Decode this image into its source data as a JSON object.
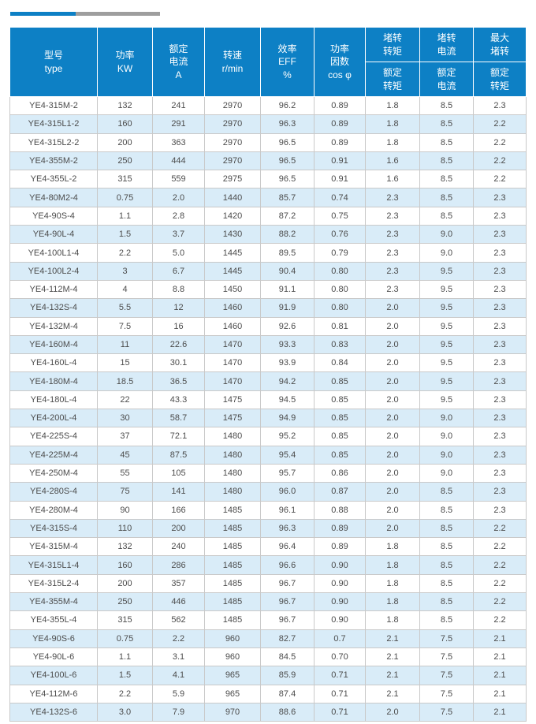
{
  "colors": {
    "header_bg": "#0d80c5",
    "row_alt_bg": "#d9ecf8",
    "accent_blue": "#0d80c5",
    "accent_gray": "#9e9e9e",
    "border": "#c9c9c9",
    "text": "#4c4c4c"
  },
  "table": {
    "header": {
      "model": [
        "型号",
        "type"
      ],
      "power": [
        "功率",
        "KW"
      ],
      "rated_current": [
        "额定",
        "电流",
        "A"
      ],
      "speed": [
        "转速",
        "r/min"
      ],
      "efficiency": [
        "效率",
        "EFF",
        "%"
      ],
      "power_factor": [
        "功率",
        "因数",
        "cos φ"
      ],
      "locked_torque_top": [
        "堵转",
        "转矩"
      ],
      "locked_torque_bottom": [
        "额定",
        "转矩"
      ],
      "locked_current_top": [
        "堵转",
        "电流"
      ],
      "locked_current_bottom": [
        "额定",
        "电流"
      ],
      "max_torque_top": [
        "最大",
        "堵转"
      ],
      "max_torque_bottom": [
        "额定",
        "转矩"
      ]
    },
    "rows": [
      [
        "YE4-315M-2",
        "132",
        "241",
        "2970",
        "96.2",
        "0.89",
        "1.8",
        "8.5",
        "2.3"
      ],
      [
        "YE4-315L1-2",
        "160",
        "291",
        "2970",
        "96.3",
        "0.89",
        "1.8",
        "8.5",
        "2.2"
      ],
      [
        "YE4-315L2-2",
        "200",
        "363",
        "2970",
        "96.5",
        "0.89",
        "1.8",
        "8.5",
        "2.2"
      ],
      [
        "YE4-355M-2",
        "250",
        "444",
        "2970",
        "96.5",
        "0.91",
        "1.6",
        "8.5",
        "2.2"
      ],
      [
        "YE4-355L-2",
        "315",
        "559",
        "2975",
        "96.5",
        "0.91",
        "1.6",
        "8.5",
        "2.2"
      ],
      [
        "YE4-80M2-4",
        "0.75",
        "2.0",
        "1440",
        "85.7",
        "0.74",
        "2.3",
        "8.5",
        "2.3"
      ],
      [
        "YE4-90S-4",
        "1.1",
        "2.8",
        "1420",
        "87.2",
        "0.75",
        "2.3",
        "8.5",
        "2.3"
      ],
      [
        "YE4-90L-4",
        "1.5",
        "3.7",
        "1430",
        "88.2",
        "0.76",
        "2.3",
        "9.0",
        "2.3"
      ],
      [
        "YE4-100L1-4",
        "2.2",
        "5.0",
        "1445",
        "89.5",
        "0.79",
        "2.3",
        "9.0",
        "2.3"
      ],
      [
        "YE4-100L2-4",
        "3",
        "6.7",
        "1445",
        "90.4",
        "0.80",
        "2.3",
        "9.5",
        "2.3"
      ],
      [
        "YE4-112M-4",
        "4",
        "8.8",
        "1450",
        "91.1",
        "0.80",
        "2.3",
        "9.5",
        "2.3"
      ],
      [
        "YE4-132S-4",
        "5.5",
        "12",
        "1460",
        "91.9",
        "0.80",
        "2.0",
        "9.5",
        "2.3"
      ],
      [
        "YE4-132M-4",
        "7.5",
        "16",
        "1460",
        "92.6",
        "0.81",
        "2.0",
        "9.5",
        "2.3"
      ],
      [
        "YE4-160M-4",
        "11",
        "22.6",
        "1470",
        "93.3",
        "0.83",
        "2.0",
        "9.5",
        "2.3"
      ],
      [
        "YE4-160L-4",
        "15",
        "30.1",
        "1470",
        "93.9",
        "0.84",
        "2.0",
        "9.5",
        "2.3"
      ],
      [
        "YE4-180M-4",
        "18.5",
        "36.5",
        "1470",
        "94.2",
        "0.85",
        "2.0",
        "9.5",
        "2.3"
      ],
      [
        "YE4-180L-4",
        "22",
        "43.3",
        "1475",
        "94.5",
        "0.85",
        "2.0",
        "9.5",
        "2.3"
      ],
      [
        "YE4-200L-4",
        "30",
        "58.7",
        "1475",
        "94.9",
        "0.85",
        "2.0",
        "9.0",
        "2.3"
      ],
      [
        "YE4-225S-4",
        "37",
        "72.1",
        "1480",
        "95.2",
        "0.85",
        "2.0",
        "9.0",
        "2.3"
      ],
      [
        "YE4-225M-4",
        "45",
        "87.5",
        "1480",
        "95.4",
        "0.85",
        "2.0",
        "9.0",
        "2.3"
      ],
      [
        "YE4-250M-4",
        "55",
        "105",
        "1480",
        "95.7",
        "0.86",
        "2.0",
        "9.0",
        "2.3"
      ],
      [
        "YE4-280S-4",
        "75",
        "141",
        "1480",
        "96.0",
        "0.87",
        "2.0",
        "8.5",
        "2.3"
      ],
      [
        "YE4-280M-4",
        "90",
        "166",
        "1485",
        "96.1",
        "0.88",
        "2.0",
        "8.5",
        "2.3"
      ],
      [
        "YE4-315S-4",
        "110",
        "200",
        "1485",
        "96.3",
        "0.89",
        "2.0",
        "8.5",
        "2.2"
      ],
      [
        "YE4-315M-4",
        "132",
        "240",
        "1485",
        "96.4",
        "0.89",
        "1.8",
        "8.5",
        "2.2"
      ],
      [
        "YE4-315L1-4",
        "160",
        "286",
        "1485",
        "96.6",
        "0.90",
        "1.8",
        "8.5",
        "2.2"
      ],
      [
        "YE4-315L2-4",
        "200",
        "357",
        "1485",
        "96.7",
        "0.90",
        "1.8",
        "8.5",
        "2.2"
      ],
      [
        "YE4-355M-4",
        "250",
        "446",
        "1485",
        "96.7",
        "0.90",
        "1.8",
        "8.5",
        "2.2"
      ],
      [
        "YE4-355L-4",
        "315",
        "562",
        "1485",
        "96.7",
        "0.90",
        "1.8",
        "8.5",
        "2.2"
      ],
      [
        "YE4-90S-6",
        "0.75",
        "2.2",
        "960",
        "82.7",
        "0.7",
        "2.1",
        "7.5",
        "2.1"
      ],
      [
        "YE4-90L-6",
        "1.1",
        "3.1",
        "960",
        "84.5",
        "0.70",
        "2.1",
        "7.5",
        "2.1"
      ],
      [
        "YE4-100L-6",
        "1.5",
        "4.1",
        "965",
        "85.9",
        "0.71",
        "2.1",
        "7.5",
        "2.1"
      ],
      [
        "YE4-112M-6",
        "2.2",
        "5.9",
        "965",
        "87.4",
        "0.71",
        "2.1",
        "7.5",
        "2.1"
      ],
      [
        "YE4-132S-6",
        "3.0",
        "7.9",
        "970",
        "88.6",
        "0.71",
        "2.0",
        "7.5",
        "2.1"
      ]
    ]
  }
}
